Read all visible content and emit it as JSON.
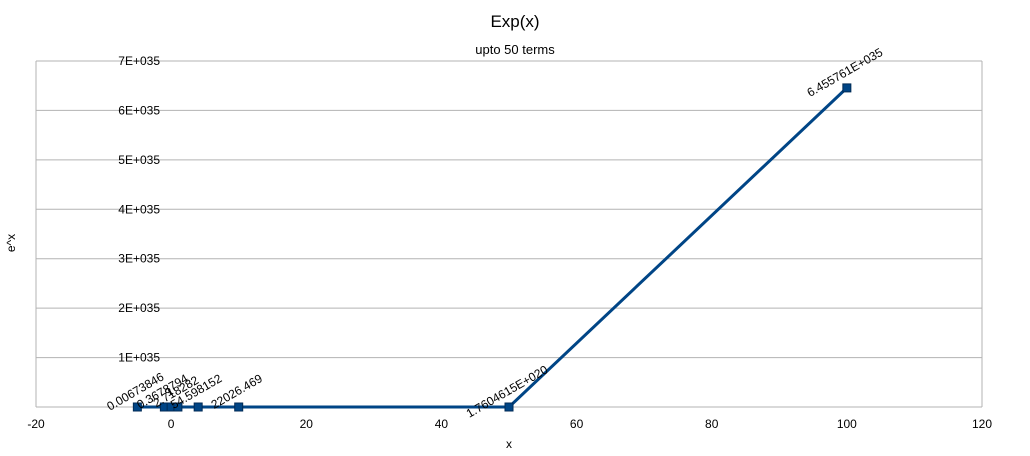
{
  "chart_data": {
    "type": "line",
    "title": "Exp(x)",
    "subtitle": "upto 50 terms",
    "xlabel": "x",
    "ylabel": "e^x",
    "xlim": [
      -20,
      120
    ],
    "ylim": [
      0,
      7e+35
    ],
    "x_ticks": [
      -20,
      0,
      20,
      40,
      60,
      80,
      100,
      120
    ],
    "x_tick_labels": [
      "-20",
      "0",
      "20",
      "40",
      "60",
      "80",
      "100",
      "120"
    ],
    "y_ticks": [
      0,
      1e+35,
      2e+35,
      3e+35,
      4e+35,
      5e+35,
      6e+35,
      7e+35
    ],
    "y_tick_labels": [
      "",
      "1E+035",
      "2E+035",
      "3E+035",
      "4E+035",
      "5E+035",
      "6E+035",
      "7E+035"
    ],
    "grid": true,
    "legend": "none",
    "colors": {
      "series": "#004586",
      "grid": "#b3b3b3"
    },
    "series": [
      {
        "x": [
          -5,
          -1,
          0,
          1,
          4,
          10,
          50,
          100
        ],
        "y": [
          0.006738,
          0.367879,
          1,
          2.718282,
          54.59815,
          22026.47,
          1.7604615e+20,
          6.455761e+35
        ],
        "labels": [
          "0.00673846",
          "0.3678794",
          "1",
          "2.718282",
          "54.598152",
          "22026.469",
          "1.7604615E+020",
          "6.455761E+035"
        ]
      }
    ]
  }
}
